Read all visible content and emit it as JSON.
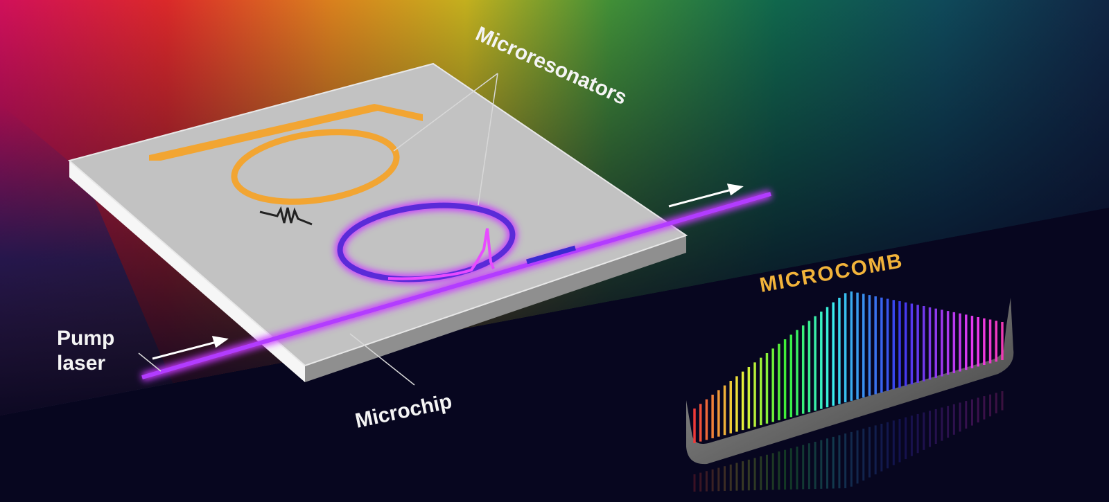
{
  "labels": {
    "microresonators": "Microresonators",
    "microchip": "Microchip",
    "pump_laser": [
      "Pump",
      "laser"
    ],
    "microcomb": "MICROCOMB"
  }
}
